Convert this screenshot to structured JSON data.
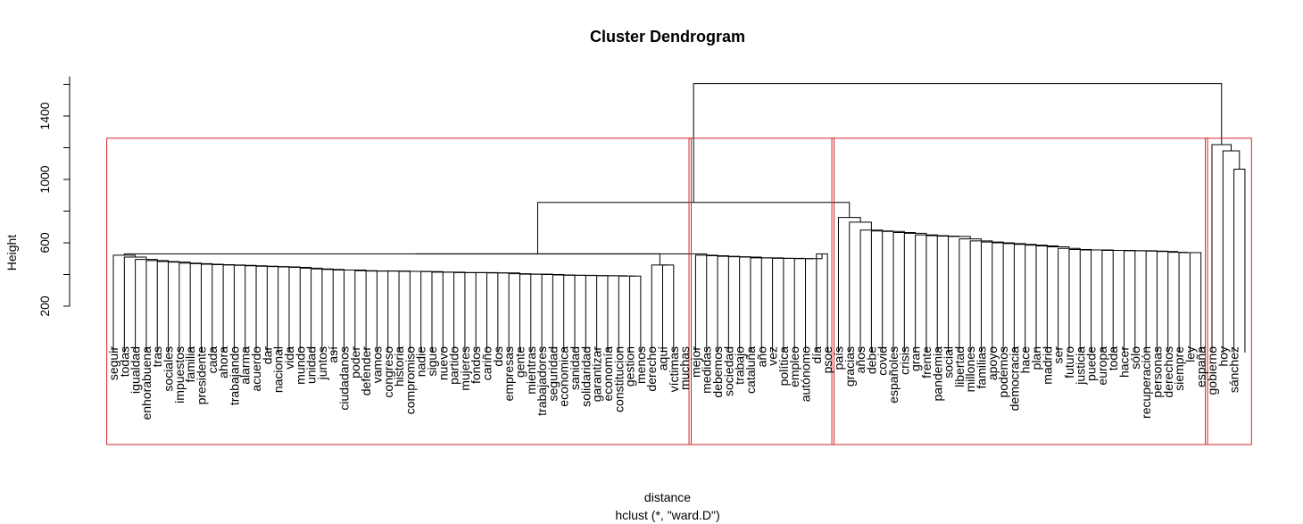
{
  "chart_data": {
    "type": "dendrogram",
    "title": "Cluster Dendrogram",
    "xlabel": "distance",
    "sublabel": "hclust (*, \"ward.D\")",
    "ylabel": "Height",
    "ylim": [
      150,
      1650
    ],
    "yticks": [
      200,
      600,
      1000,
      1400
    ],
    "rect_color": "#d62728",
    "line_color": "#000000",
    "leaves": [
      "seguir",
      "todas",
      "igualdad",
      "enhorabuena",
      "tras",
      "sociales",
      "impuestos",
      "familia",
      "presidente",
      "cada",
      "ahora",
      "trabajando",
      "alarma",
      "acuerdo",
      "dar",
      "nacional",
      "vida",
      "mundo",
      "unidad",
      "juntos",
      "así",
      "ciudadanos",
      "poder",
      "defender",
      "vamos",
      "congreso",
      "historia",
      "compromiso",
      "nadie",
      "sigue",
      "nuevo",
      "partido",
      "mujeres",
      "fondos",
      "cariño",
      "dos",
      "empresas",
      "gente",
      "mientras",
      "trabajadores",
      "seguridad",
      "economica",
      "sanidad",
      "solidaridad",
      "garantizar",
      "economía",
      "constitucion",
      "gestion",
      "menos",
      "derecho",
      "aquí",
      "víctimas",
      "muchas",
      "mejor",
      "medidas",
      "debemos",
      "sociedad",
      "trabajo",
      "cataluña",
      "año",
      "vez",
      "política",
      "empleo",
      "autónomo",
      "día",
      "psoe",
      "país",
      "gracias",
      "años",
      "debe",
      "covid",
      "españoles",
      "crisis",
      "gran",
      "frente",
      "pandemia",
      "social",
      "libertad",
      "millones",
      "familias",
      "apoyo",
      "podemos",
      "democracia",
      "hace",
      "plan",
      "madrid",
      "ser",
      "futuro",
      "justicia",
      "puede",
      "europa",
      "toda",
      "hacer",
      "sólo",
      "recuperación",
      "personas",
      "derechos",
      "siempre",
      "ley",
      "españa",
      "gobierno",
      "hoy",
      "sánchez"
    ],
    "clusters": [
      {
        "first": 0,
        "last": 52
      },
      {
        "first": 53,
        "last": 65
      },
      {
        "first": 66,
        "last": 99
      },
      {
        "first": 100,
        "last": 103
      }
    ],
    "cluster_box_height": 1260,
    "merges": [
      [
        -51,
        -52,
        460
      ],
      [
        -50,
        1,
        460
      ],
      [
        -49,
        -48,
        390
      ],
      [
        -47,
        3,
        390
      ],
      [
        -46,
        4,
        392
      ],
      [
        -45,
        5,
        392
      ],
      [
        -44,
        6,
        394
      ],
      [
        -43,
        7,
        395
      ],
      [
        -42,
        8,
        395
      ],
      [
        -41,
        9,
        397
      ],
      [
        -40,
        10,
        400
      ],
      [
        -39,
        11,
        402
      ],
      [
        -38,
        12,
        402
      ],
      [
        -37,
        13,
        405
      ],
      [
        -36,
        14,
        410
      ],
      [
        -35,
        15,
        410
      ],
      [
        -34,
        16,
        412
      ],
      [
        -33,
        17,
        412
      ],
      [
        -32,
        18,
        412
      ],
      [
        -31,
        19,
        415
      ],
      [
        -30,
        20,
        415
      ],
      [
        -29,
        21,
        418
      ],
      [
        -28,
        22,
        420
      ],
      [
        -27,
        23,
        420
      ],
      [
        -26,
        24,
        422
      ],
      [
        -25,
        25,
        422
      ],
      [
        -24,
        26,
        422
      ],
      [
        -23,
        27,
        424
      ],
      [
        -22,
        28,
        428
      ],
      [
        -21,
        29,
        428
      ],
      [
        -20,
        30,
        432
      ],
      [
        -19,
        31,
        435
      ],
      [
        -18,
        32,
        440
      ],
      [
        -17,
        33,
        445
      ],
      [
        -16,
        34,
        448
      ],
      [
        -15,
        35,
        450
      ],
      [
        -14,
        36,
        452
      ],
      [
        -13,
        37,
        455
      ],
      [
        -12,
        38,
        458
      ],
      [
        -11,
        39,
        460
      ],
      [
        -10,
        40,
        462
      ],
      [
        -9,
        41,
        465
      ],
      [
        -8,
        42,
        468
      ],
      [
        -7,
        43,
        472
      ],
      [
        -6,
        44,
        478
      ],
      [
        -5,
        45,
        482
      ],
      [
        -4,
        46,
        488
      ],
      [
        -3,
        47,
        495
      ],
      [
        -2,
        48,
        510
      ],
      [
        -1,
        49,
        522
      ],
      [
        -65,
        -66,
        530
      ],
      [
        -64,
        51,
        500
      ],
      [
        -63,
        52,
        500
      ],
      [
        -62,
        53,
        502
      ],
      [
        -61,
        54,
        502
      ],
      [
        -60,
        55,
        505
      ],
      [
        -59,
        56,
        505
      ],
      [
        -58,
        57,
        510
      ],
      [
        -57,
        58,
        512
      ],
      [
        -56,
        59,
        515
      ],
      [
        -55,
        60,
        518
      ],
      [
        -54,
        61,
        522
      ],
      [
        50,
        62,
        530
      ],
      [
        2,
        63,
        530
      ],
      [
        -99,
        -100,
        538
      ],
      [
        -98,
        65,
        538
      ],
      [
        -97,
        66,
        540
      ],
      [
        -96,
        67,
        545
      ],
      [
        -95,
        68,
        548
      ],
      [
        -94,
        69,
        550
      ],
      [
        -93,
        70,
        550
      ],
      [
        -92,
        71,
        552
      ],
      [
        -91,
        72,
        552
      ],
      [
        -90,
        73,
        555
      ],
      [
        -89,
        74,
        555
      ],
      [
        -88,
        75,
        558
      ],
      [
        -87,
        76,
        565
      ],
      [
        -86,
        77,
        575
      ],
      [
        -85,
        78,
        580
      ],
      [
        -84,
        79,
        585
      ],
      [
        -83,
        80,
        590
      ],
      [
        -82,
        81,
        595
      ],
      [
        -81,
        82,
        600
      ],
      [
        -80,
        83,
        605
      ],
      [
        -79,
        84,
        612
      ],
      [
        -78,
        85,
        625
      ],
      [
        -77,
        86,
        640
      ],
      [
        -76,
        87,
        642
      ],
      [
        -75,
        88,
        645
      ],
      [
        -74,
        89,
        650
      ],
      [
        -73,
        90,
        660
      ],
      [
        -72,
        91,
        665
      ],
      [
        -71,
        92,
        672
      ],
      [
        -70,
        93,
        675
      ],
      [
        -69,
        94,
        680
      ],
      [
        -68,
        95,
        730
      ],
      [
        -67,
        96,
        760
      ],
      [
        64,
        97,
        855
      ],
      [
        -103,
        -104,
        1065
      ],
      [
        -102,
        99,
        1180
      ],
      [
        -101,
        100,
        1220
      ],
      [
        98,
        101,
        1605
      ]
    ]
  }
}
